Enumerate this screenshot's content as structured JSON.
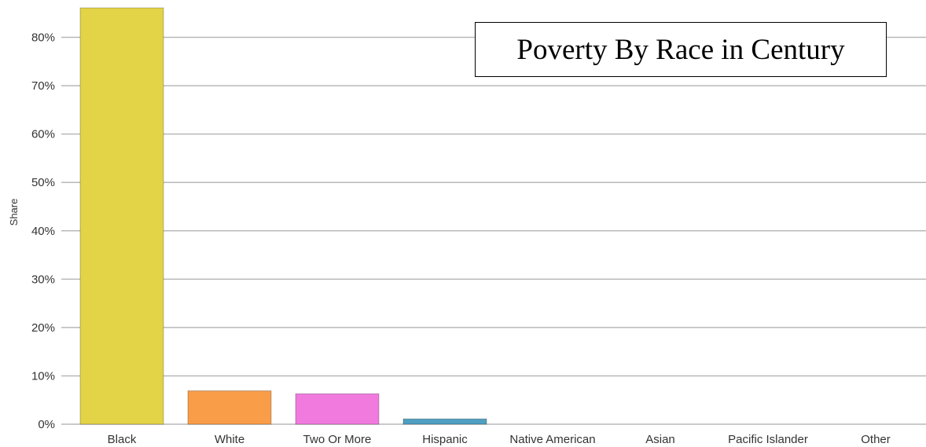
{
  "chart_data": {
    "type": "bar",
    "title": "Poverty By Race in Century",
    "xlabel": "",
    "ylabel": "Share",
    "categories": [
      "Black",
      "White",
      "Two Or More",
      "Hispanic",
      "Native American",
      "Asian",
      "Pacific Islander",
      "Other"
    ],
    "values": [
      86.1,
      6.9,
      6.3,
      1.1,
      0,
      0,
      0,
      0
    ],
    "colors": [
      "#e2d347",
      "#f99d48",
      "#f07ade",
      "#4e9fc1",
      "#cccccc",
      "#cccccc",
      "#cccccc",
      "#cccccc"
    ],
    "ylim": [
      0,
      86.1
    ],
    "yticks": [
      0,
      10,
      20,
      30,
      40,
      50,
      60,
      70,
      80
    ],
    "ytick_labels": [
      "0%",
      "10%",
      "20%",
      "30%",
      "40%",
      "50%",
      "60%",
      "70%",
      "80%"
    ],
    "grid": true,
    "legend": false
  }
}
